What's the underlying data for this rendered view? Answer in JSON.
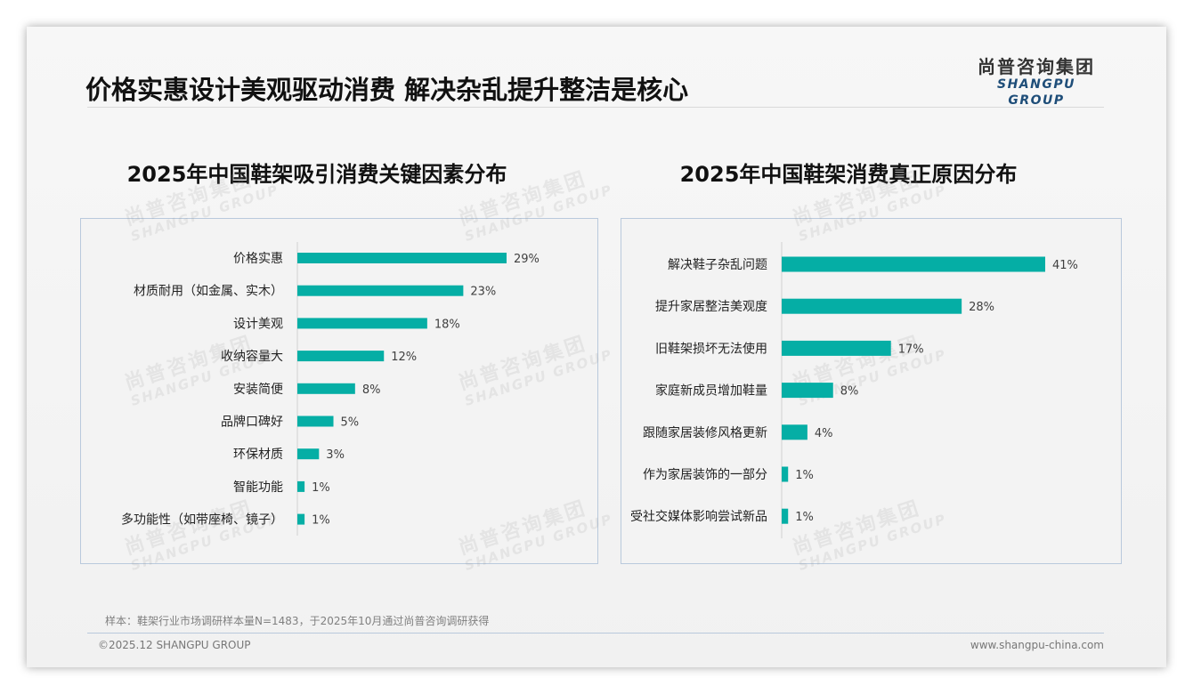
{
  "header": {
    "title": "价格实惠设计美观驱动消费 解决杂乱提升整洁是核心"
  },
  "logo": {
    "cn": "尚普咨询集团",
    "en": "SHANGPU GROUP"
  },
  "watermark": {
    "cn": "尚普咨询集团",
    "en": "SHANGPU GROUP"
  },
  "colors": {
    "bar": "#05aea5",
    "axis": "#d0d0d0",
    "label": "#222222",
    "value": "#404040"
  },
  "chart_data": [
    {
      "type": "bar",
      "orientation": "horizontal",
      "title": "2025年中国鞋架吸引消费关键因素分布",
      "categories": [
        "价格实惠",
        "材质耐用（如金属、实木）",
        "设计美观",
        "收纳容量大",
        "安装简便",
        "品牌口碑好",
        "环保材质",
        "智能功能",
        "多功能性（如带座椅、镜子）"
      ],
      "values": [
        29,
        23,
        18,
        12,
        8,
        5,
        3,
        1,
        1
      ],
      "value_suffix": "%",
      "xlabel": "",
      "ylabel": "",
      "xlim": [
        0,
        29
      ]
    },
    {
      "type": "bar",
      "orientation": "horizontal",
      "title": "2025年中国鞋架消费真正原因分布",
      "categories": [
        "解决鞋子杂乱问题",
        "提升家居整洁美观度",
        "旧鞋架损坏无法使用",
        "家庭新成员增加鞋量",
        "跟随家居装修风格更新",
        "作为家居装饰的一部分",
        "受社交媒体影响尝试新品"
      ],
      "values": [
        41,
        28,
        17,
        8,
        4,
        1,
        1
      ],
      "value_suffix": "%",
      "xlabel": "",
      "ylabel": "",
      "xlim": [
        0,
        41
      ]
    }
  ],
  "footer": {
    "note": "样本：鞋架行业市场调研样本量N=1483，于2025年10月通过尚普咨询调研获得",
    "copyright": "©2025.12 SHANGPU GROUP",
    "url": "www.shangpu-china.com"
  }
}
